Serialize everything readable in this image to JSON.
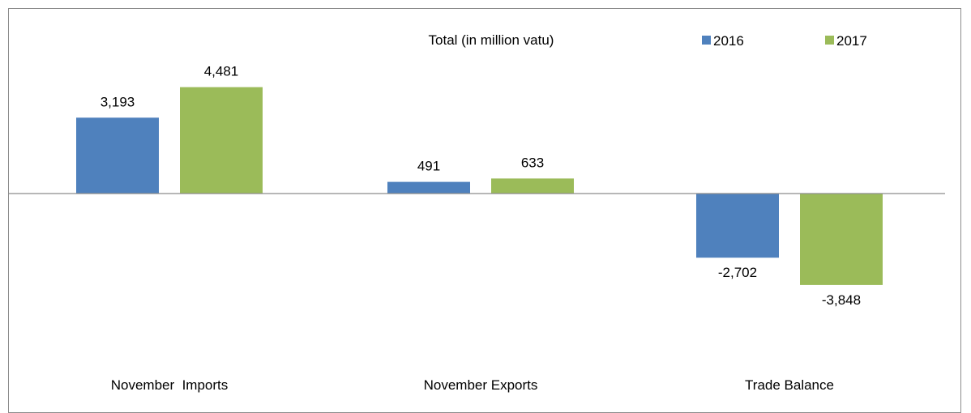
{
  "chart_data": {
    "type": "bar",
    "title": "Total (in million vatu)",
    "categories": [
      "November  Imports",
      "November Exports",
      "Trade Balance"
    ],
    "series": [
      {
        "name": "2016",
        "color": "#4f81bd",
        "values": [
          3193,
          491,
          -2702
        ]
      },
      {
        "name": "2017",
        "color": "#9bbb59",
        "values": [
          4481,
          633,
          -3848
        ]
      }
    ],
    "data_labels": [
      [
        "3,193",
        "491",
        "-2,702"
      ],
      [
        "4,481",
        "633",
        "-3,848"
      ]
    ],
    "legend_position": "top-right",
    "axis_line_color": "#8c8c8c",
    "grid": false
  }
}
